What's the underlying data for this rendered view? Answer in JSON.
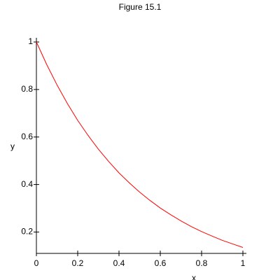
{
  "chart_data": {
    "type": "line",
    "title": "Figure 15.1",
    "x_label": "x",
    "y_label": "y",
    "x": [
      0,
      0.05,
      0.1,
      0.15,
      0.2,
      0.25,
      0.3,
      0.35,
      0.4,
      0.45,
      0.5,
      0.55,
      0.6,
      0.65,
      0.7,
      0.75,
      0.8,
      0.85,
      0.9,
      0.95,
      1
    ],
    "series": [
      {
        "color": "#ff0000",
        "values": [
          1,
          0.905,
          0.819,
          0.741,
          0.67,
          0.607,
          0.549,
          0.497,
          0.449,
          0.407,
          0.368,
          0.333,
          0.301,
          0.273,
          0.247,
          0.223,
          0.202,
          0.183,
          0.165,
          0.15,
          0.135
        ]
      }
    ],
    "xlim": [
      0,
      1
    ],
    "ylim": [
      0.11,
      1
    ],
    "xticks": [
      0,
      0.2,
      0.4,
      0.6,
      0.8,
      1
    ],
    "yticks": [
      0.2,
      0.4,
      0.6,
      0.8,
      1
    ]
  }
}
